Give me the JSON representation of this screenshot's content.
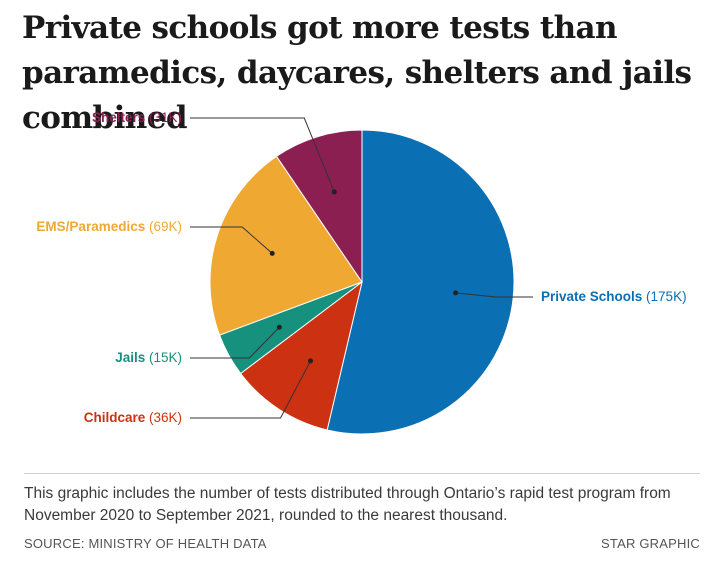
{
  "title": "Private schools got more tests than paramedics, daycares, shelters and jails combined",
  "note": "This graphic includes the number of tests distributed through Ontario’s rapid test program from November 2020 to September 2021, rounded to the nearest thousand.",
  "source": "SOURCE: MINISTRY OF HEALTH DATA",
  "credit": "STAR GRAPHIC",
  "chart_data": {
    "type": "pie",
    "slices": [
      {
        "label": "Private Schools",
        "value_label": "(175K)",
        "value": 175,
        "color": "#0a6fb3"
      },
      {
        "label": "Childcare",
        "value_label": "(36K)",
        "value": 36,
        "color": "#cc3212"
      },
      {
        "label": "Jails",
        "value_label": "(15K)",
        "value": 15,
        "color": "#15917e"
      },
      {
        "label": "EMS/Paramedics",
        "value_label": "(69K)",
        "value": 69,
        "color": "#efa932"
      },
      {
        "label": "Shelters",
        "value_label": "(31K)",
        "value": 31,
        "color": "#8c1f52"
      }
    ]
  }
}
